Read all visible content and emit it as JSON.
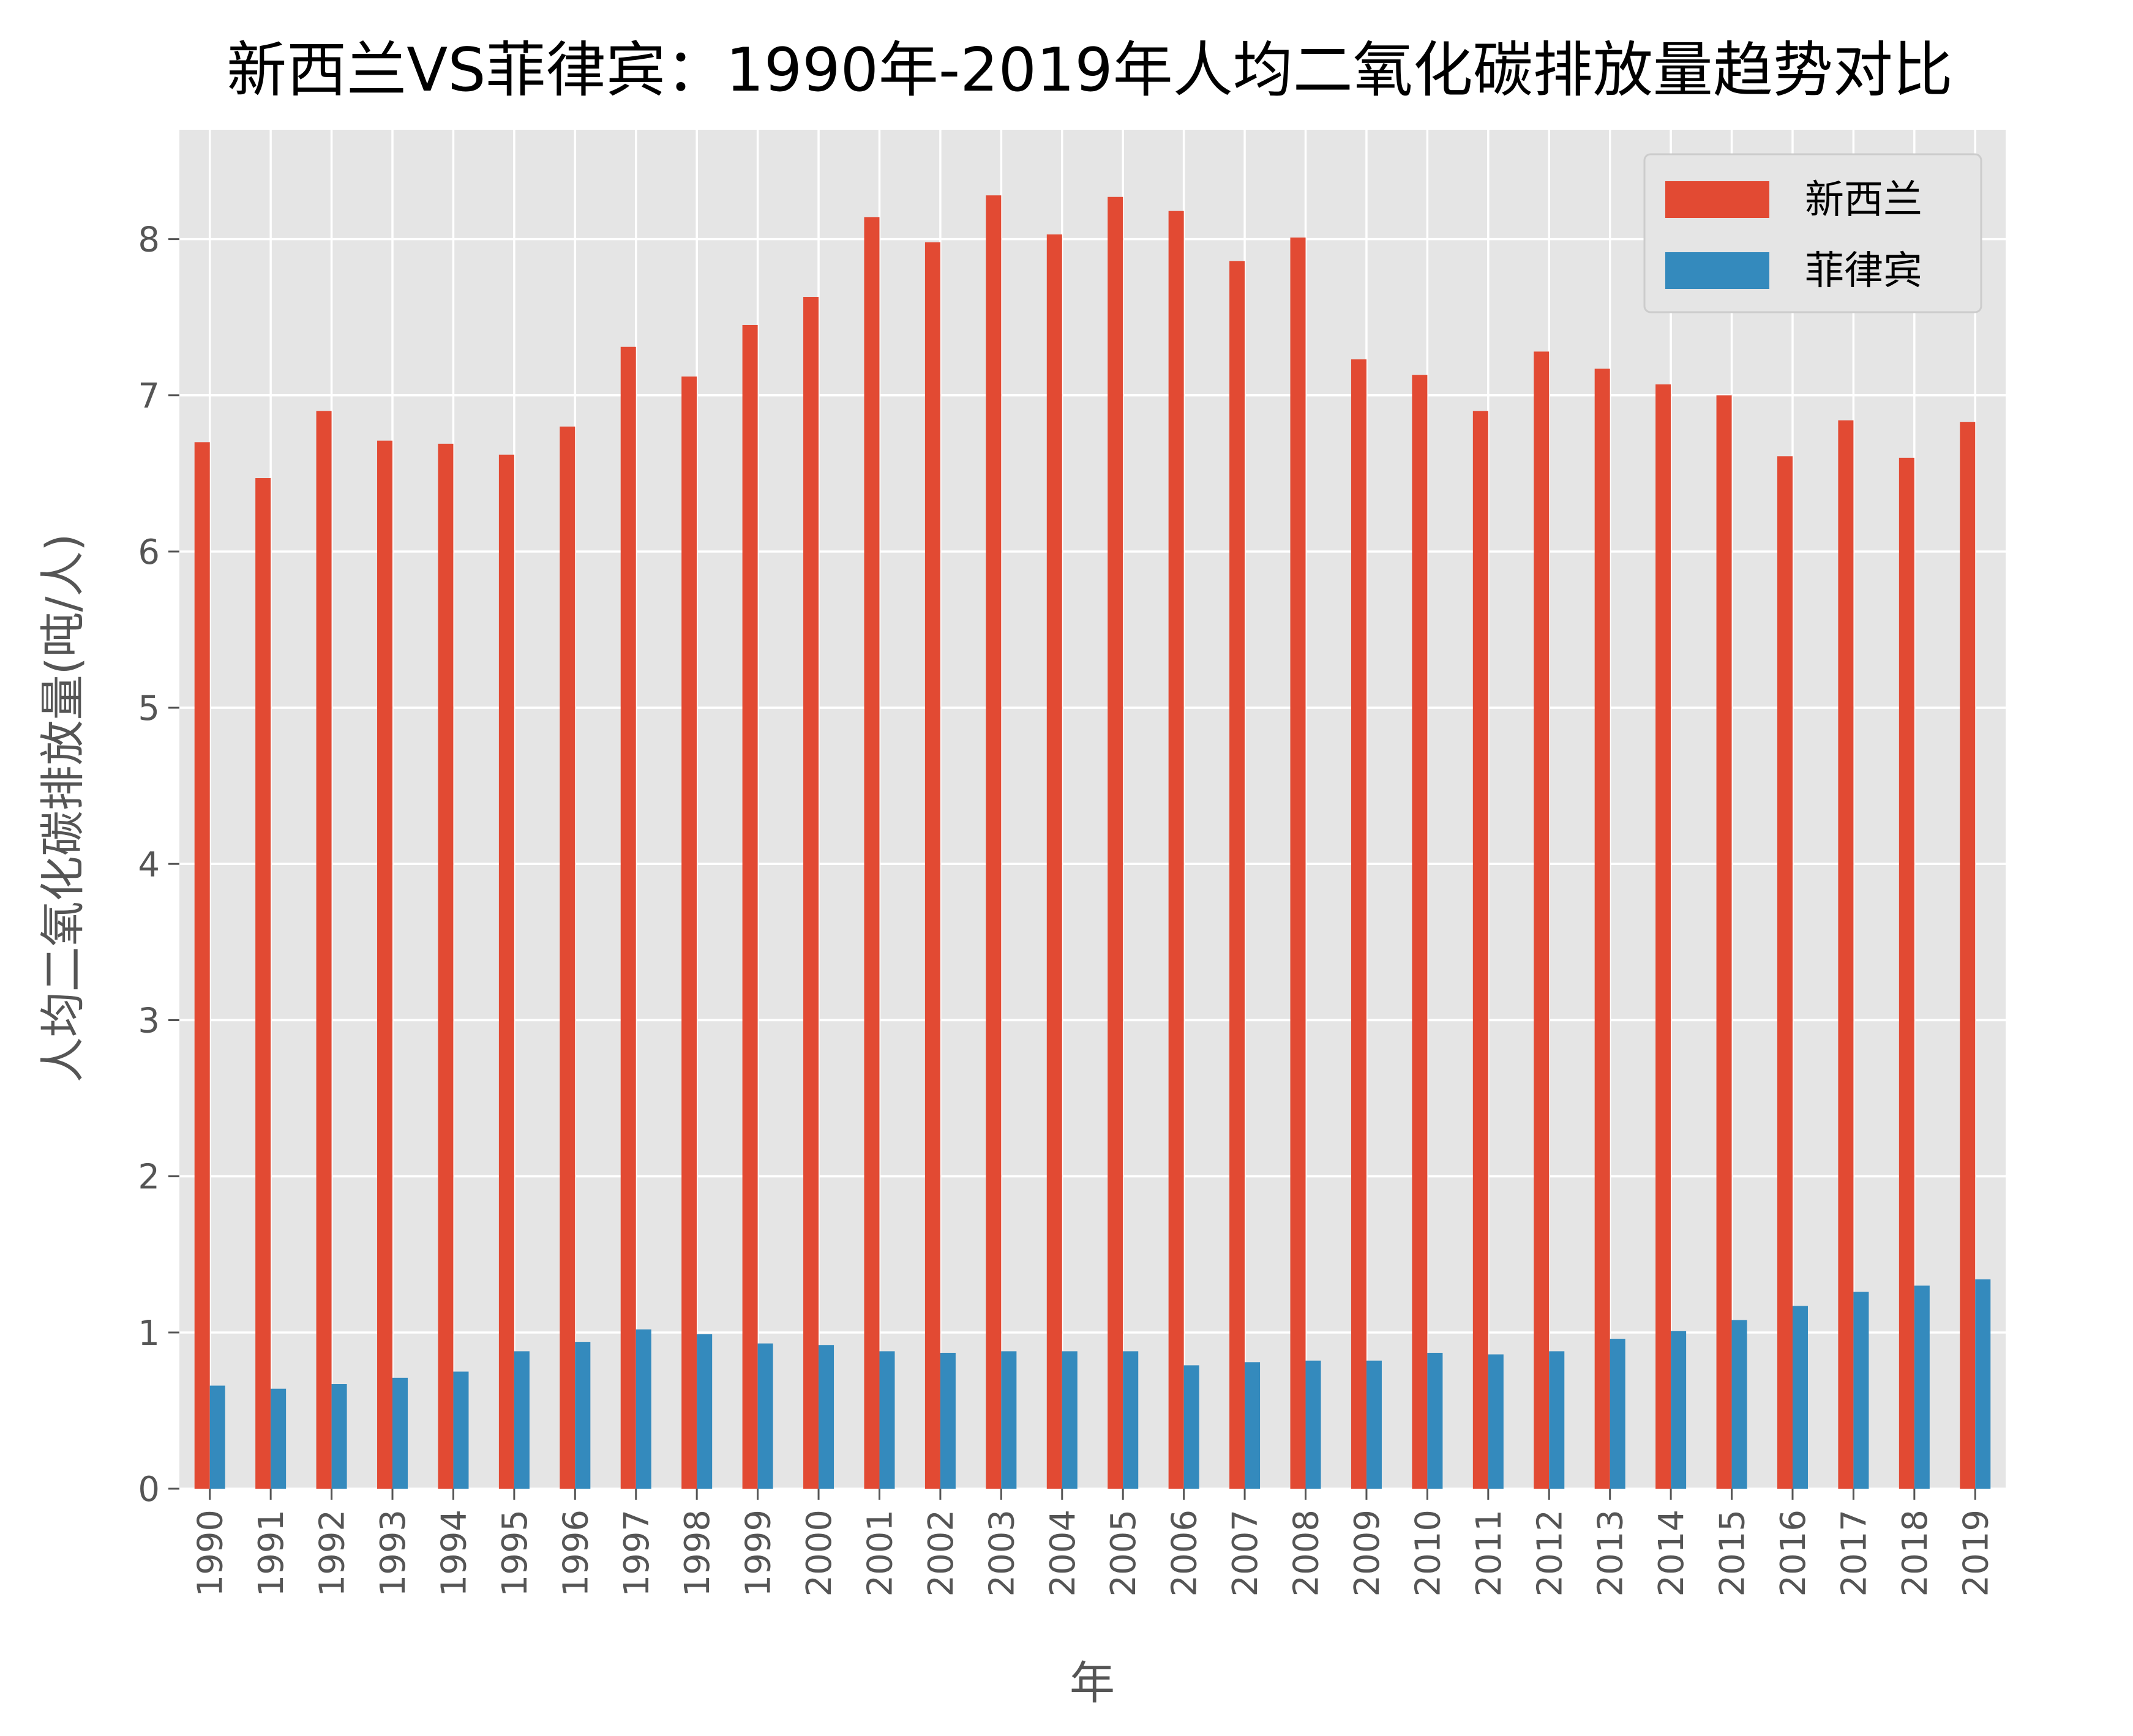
{
  "chart_data": {
    "type": "bar",
    "title": "新西兰VS菲律宾：1990年-2019年人均二氧化碳排放量趋势对比",
    "xlabel": "年",
    "ylabel": "人均二氧化碳排放量(吨/人)",
    "ylim": [
      0,
      8.7
    ],
    "yticks": [
      "0",
      "1",
      "2",
      "3",
      "4",
      "5",
      "6",
      "7",
      "8"
    ],
    "grid": true,
    "legend_position": "top-right",
    "categories": [
      "1990",
      "1991",
      "1992",
      "1993",
      "1994",
      "1995",
      "1996",
      "1997",
      "1998",
      "1999",
      "2000",
      "2001",
      "2002",
      "2003",
      "2004",
      "2005",
      "2006",
      "2007",
      "2008",
      "2009",
      "2010",
      "2011",
      "2012",
      "2013",
      "2014",
      "2015",
      "2016",
      "2017",
      "2018",
      "2019"
    ],
    "series": [
      {
        "name": "新西兰",
        "color": "#E24A33",
        "values": [
          6.7,
          6.47,
          6.9,
          6.71,
          6.69,
          6.62,
          6.8,
          7.31,
          7.12,
          7.45,
          7.63,
          8.14,
          7.98,
          8.28,
          8.03,
          8.27,
          8.18,
          7.86,
          8.01,
          7.23,
          7.13,
          6.9,
          7.28,
          7.17,
          7.07,
          7.0,
          6.61,
          6.84,
          6.6,
          6.83
        ]
      },
      {
        "name": "菲律宾",
        "color": "#348ABD",
        "values": [
          0.66,
          0.64,
          0.67,
          0.71,
          0.75,
          0.88,
          0.94,
          1.02,
          0.99,
          0.93,
          0.92,
          0.88,
          0.87,
          0.88,
          0.88,
          0.88,
          0.79,
          0.81,
          0.82,
          0.82,
          0.87,
          0.86,
          0.88,
          0.96,
          1.01,
          1.08,
          1.17,
          1.26,
          1.3,
          1.34
        ]
      }
    ]
  },
  "colors": {
    "plot_background": "#E5E5E5",
    "grid": "#FFFFFF",
    "tick_text": "#555555"
  }
}
